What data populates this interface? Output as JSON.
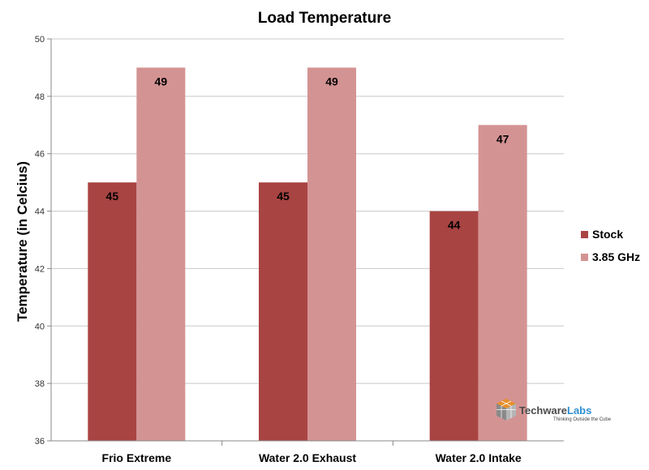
{
  "chart_data": {
    "type": "bar",
    "title": "Load Temperature",
    "xlabel": "",
    "ylabel": "Temperature (in Celcius)",
    "categories": [
      "Frio Extreme",
      "Water 2.0 Exhaust",
      "Water 2.0 Intake"
    ],
    "series": [
      {
        "name": "Stock",
        "values": [
          45,
          45,
          44
        ],
        "color": "#a84442"
      },
      {
        "name": "3.85 GHz",
        "values": [
          49,
          49,
          47
        ],
        "color": "#d49393"
      }
    ],
    "ylim": [
      36,
      50
    ],
    "yticks": [
      36,
      38,
      40,
      42,
      44,
      46,
      48,
      50
    ],
    "grid": true,
    "legend": "right",
    "data_labels": true
  },
  "watermark": {
    "brand_part1": "Techware",
    "brand_part2": "Labs",
    "tagline": "Thinking Outside the Cube",
    "colors": {
      "part1": "#4b4b4b",
      "part2": "#2e8fd0",
      "cube_orange": "#e8902b",
      "cube_gray": "#8a8a8a"
    }
  }
}
